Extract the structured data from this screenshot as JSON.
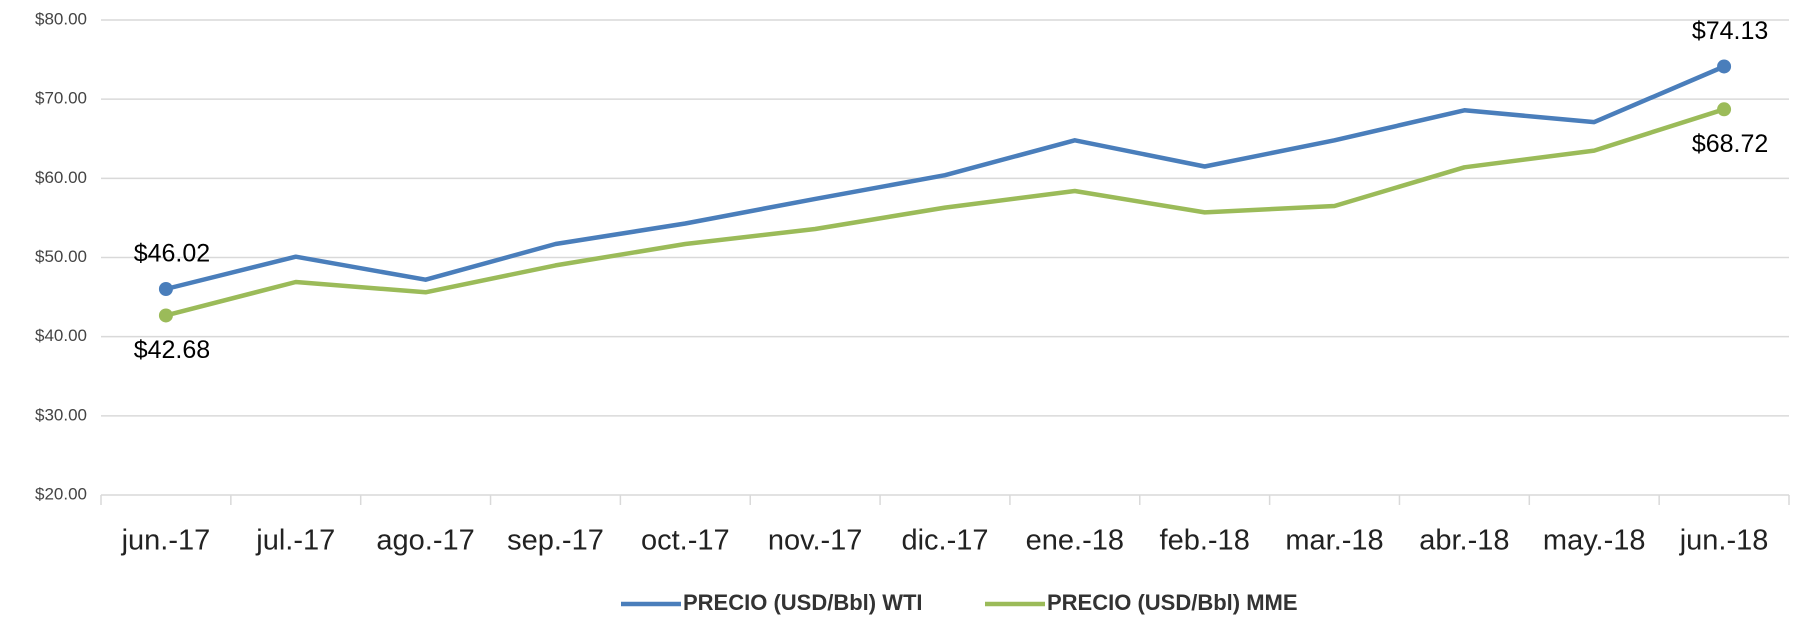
{
  "chart_data": {
    "type": "line",
    "categories": [
      "jun.-17",
      "jul.-17",
      "ago.-17",
      "sep.-17",
      "oct.-17",
      "nov.-17",
      "dic.-17",
      "ene.-18",
      "feb.-18",
      "mar.-18",
      "abr.-18",
      "may.-18",
      "jun.-18"
    ],
    "series": [
      {
        "name": "PRECIO (USD/Bbl) WTI",
        "color": "#4a7ebb",
        "values": [
          46.02,
          50.1,
          47.2,
          51.7,
          54.3,
          57.4,
          60.4,
          64.8,
          61.5,
          64.8,
          68.6,
          67.1,
          74.13
        ],
        "value_labels": [
          "$46.02",
          null,
          null,
          null,
          null,
          null,
          null,
          null,
          null,
          null,
          null,
          null,
          "$74.13"
        ]
      },
      {
        "name": "PRECIO (USD/Bbl) MME",
        "color": "#9bbb59",
        "values": [
          42.68,
          46.9,
          45.6,
          49.0,
          51.7,
          53.6,
          56.3,
          58.4,
          55.7,
          56.5,
          61.4,
          63.5,
          68.72
        ],
        "value_labels": [
          "$42.68",
          null,
          null,
          null,
          null,
          null,
          null,
          null,
          null,
          null,
          null,
          null,
          "$68.72"
        ]
      }
    ],
    "ylim": [
      20,
      80
    ],
    "yticks": [
      {
        "value": 20,
        "label": "$20.00"
      },
      {
        "value": 30,
        "label": "$30.00"
      },
      {
        "value": 40,
        "label": "$40.00"
      },
      {
        "value": 50,
        "label": "$50.00"
      },
      {
        "value": 60,
        "label": "$60.00"
      },
      {
        "value": 70,
        "label": "$70.00"
      },
      {
        "value": 80,
        "label": "$80.00"
      }
    ],
    "grid": true,
    "legend": "bottom"
  }
}
